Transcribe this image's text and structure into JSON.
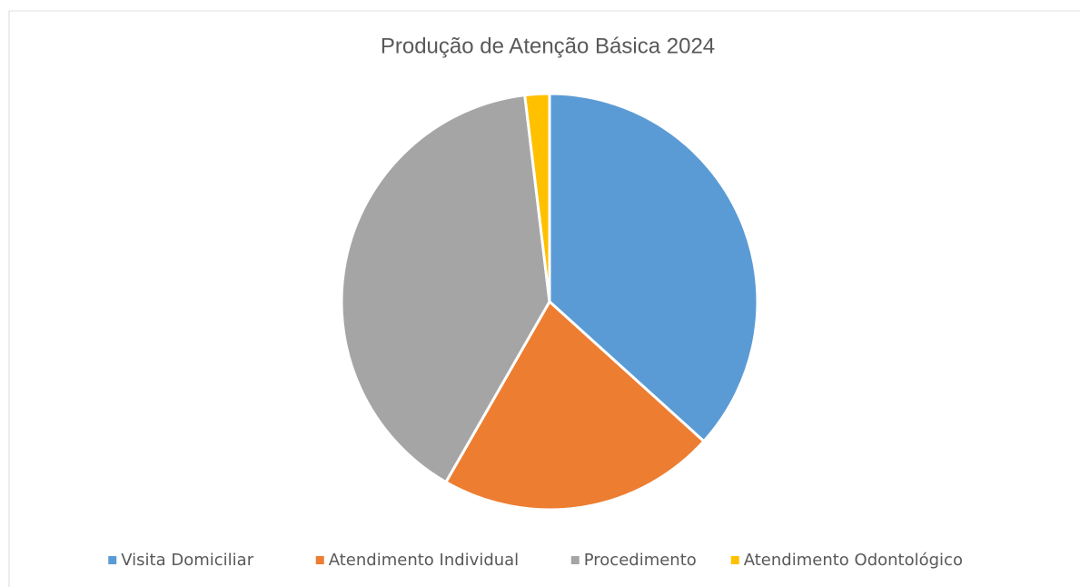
{
  "chart_data": {
    "type": "pie",
    "title": "Produção de Atenção Básica 2024",
    "categories": [
      "Visita Domiciliar",
      "Atendimento Individual",
      "Procedimento",
      "Atendimento Odontológico"
    ],
    "values": [
      36.7,
      21.6,
      39.8,
      1.9
    ],
    "colors": [
      "#5b9bd5",
      "#ed7d31",
      "#a5a5a5",
      "#ffc000"
    ],
    "legend": "bottom"
  }
}
